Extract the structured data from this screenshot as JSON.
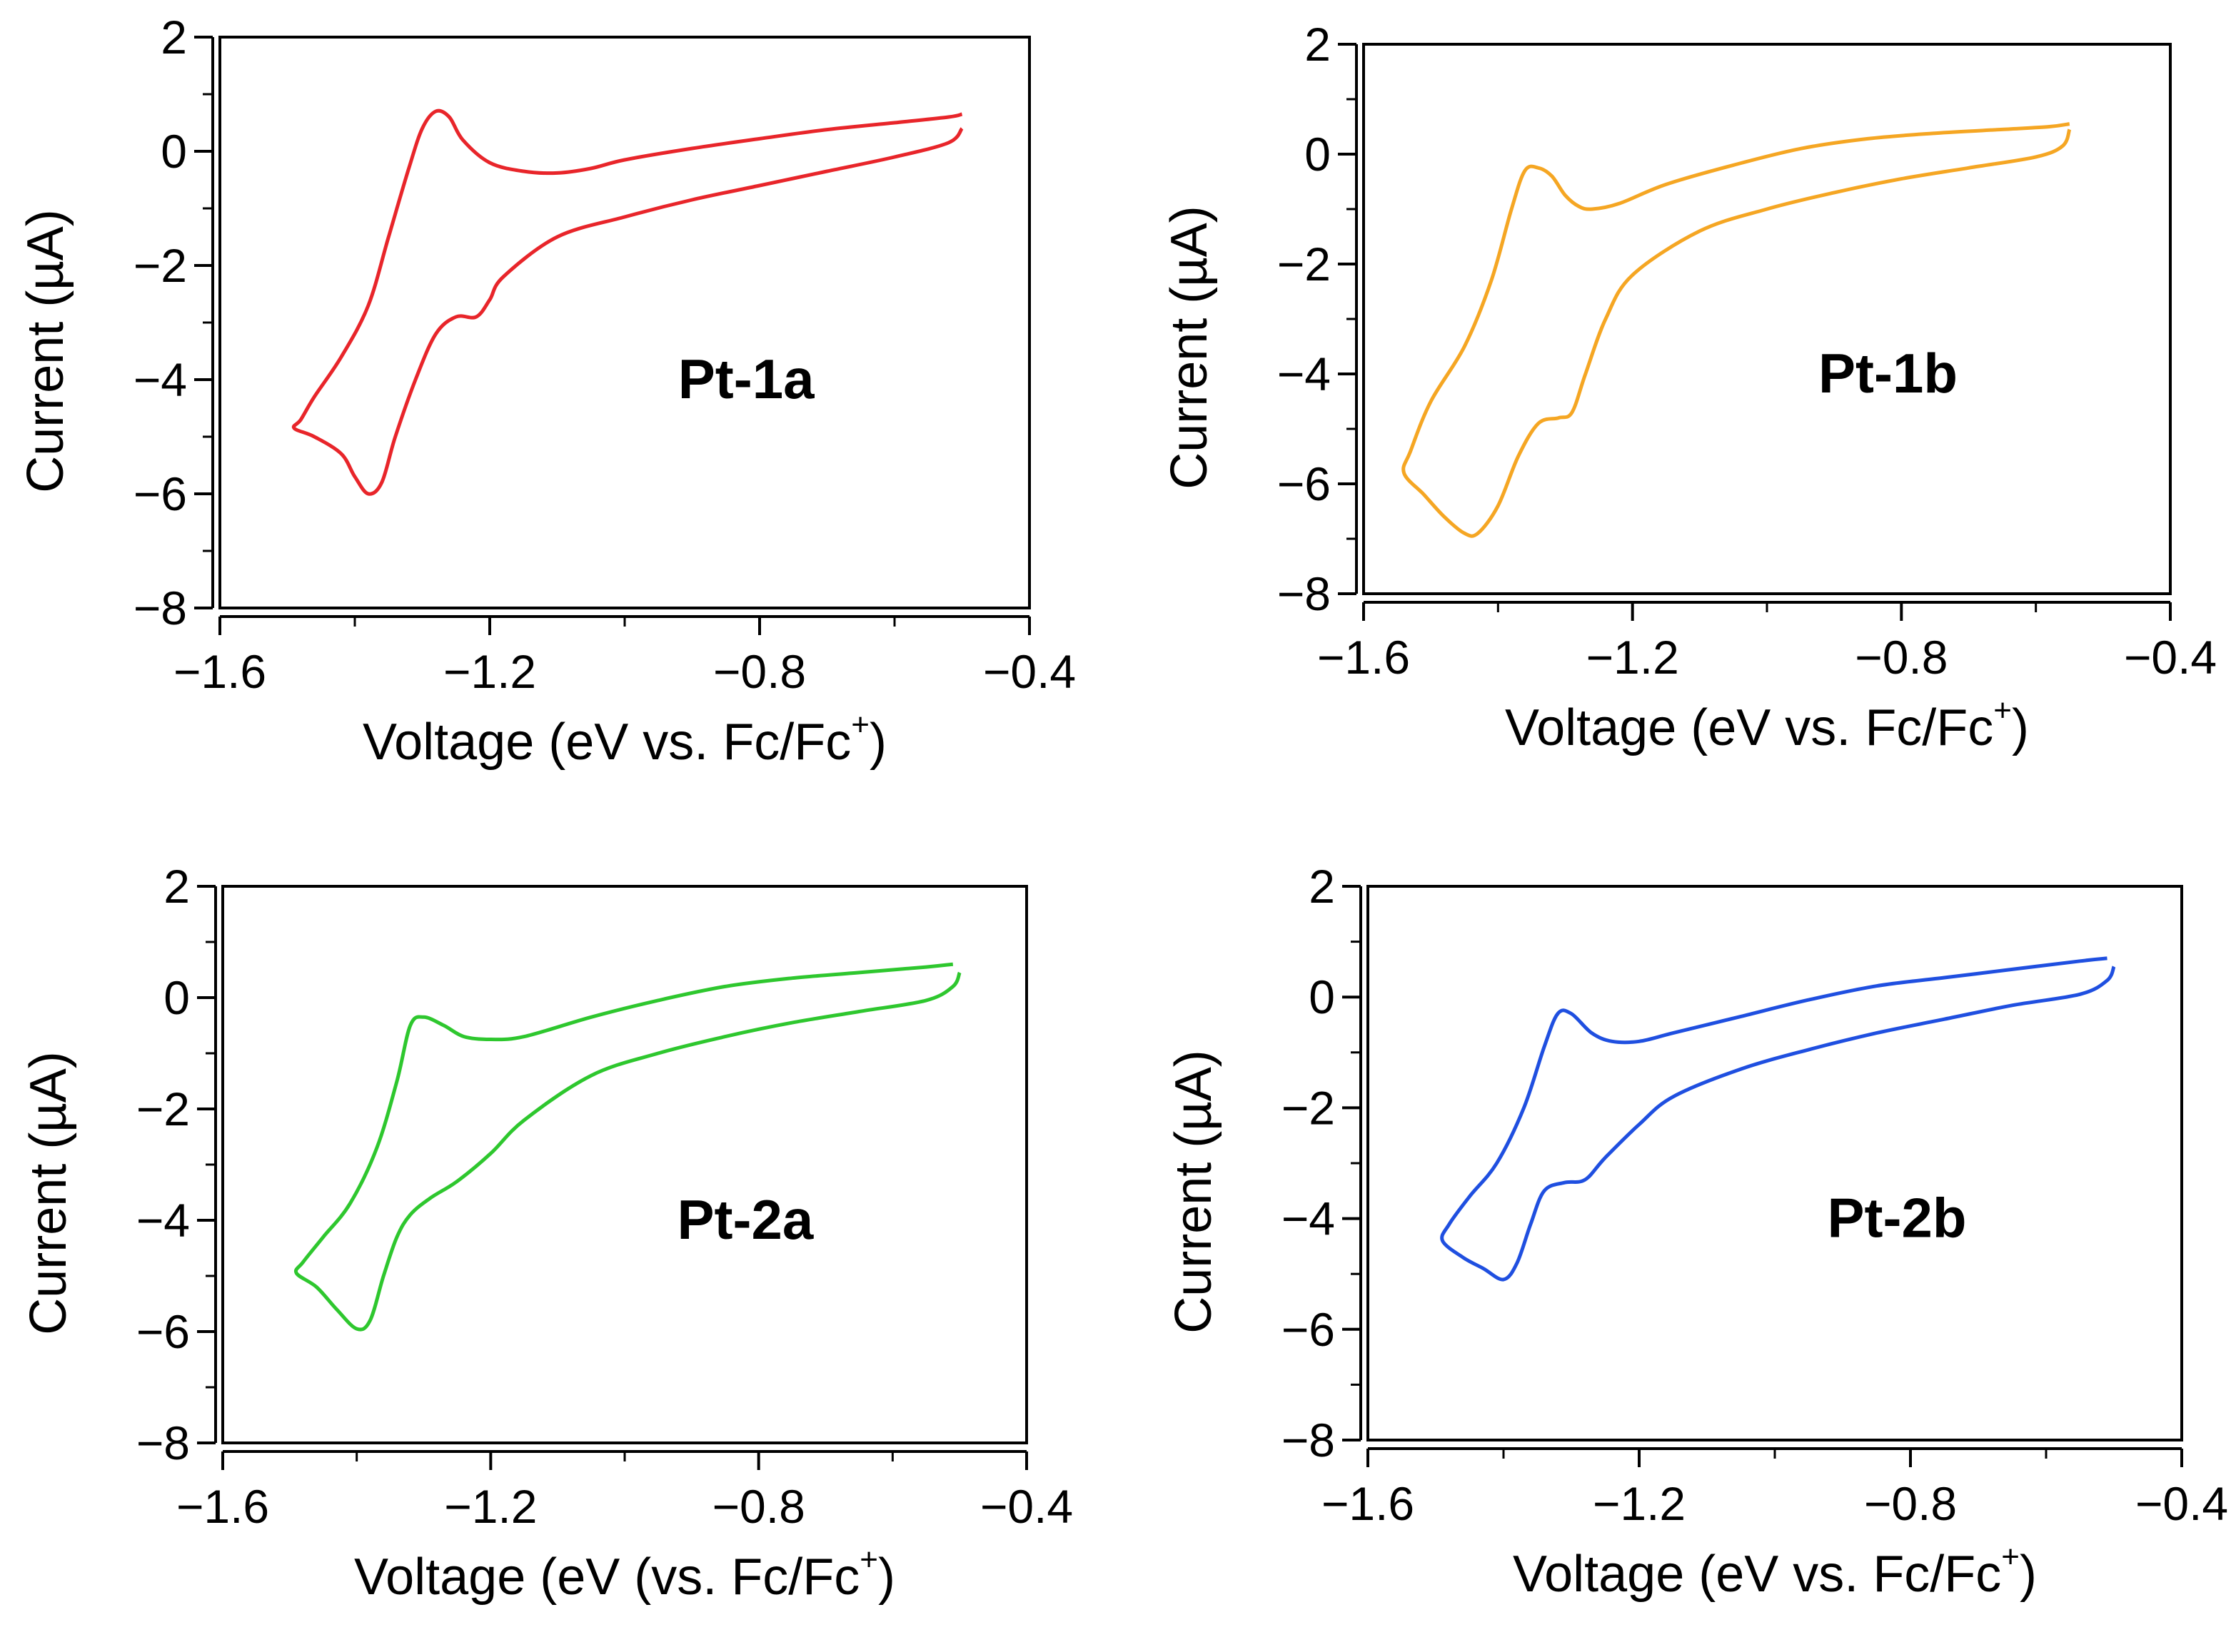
{
  "figure": {
    "panels": [
      {
        "label": "Pt-1a",
        "color": "#e8252a",
        "xlabel_pre": "Voltage (eV vs. Fc/Fc",
        "xlabel_sup": "+",
        "xlabel_post": ")",
        "ylabel": "Current (µA)"
      },
      {
        "label": "Pt-1b",
        "color": "#f5a623",
        "xlabel_pre": "Voltage (eV vs. Fc/Fc",
        "xlabel_sup": "+",
        "xlabel_post": ")",
        "ylabel": "Current (µA)"
      },
      {
        "label": "Pt-2a",
        "color": "#2ec72e",
        "xlabel_pre": "Voltage (eV (vs. Fc/Fc",
        "xlabel_sup": "+",
        "xlabel_post": ")",
        "ylabel": "Current (µA)"
      },
      {
        "label": "Pt-2b",
        "color": "#1f4fe0",
        "xlabel_pre": "Voltage (eV vs. Fc/Fc",
        "xlabel_sup": "+",
        "xlabel_post": ")",
        "ylabel": "Current (µA)"
      }
    ]
  },
  "chart_data": [
    {
      "type": "line",
      "title": "",
      "annotation": "Pt-1a",
      "xlabel": "Voltage (eV vs. Fc/Fc+)",
      "ylabel": "Current (µA)",
      "xlim": [
        -1.6,
        -0.4
      ],
      "ylim": [
        -8,
        2
      ],
      "xticks": [
        -1.6,
        -1.2,
        -0.8,
        -0.4
      ],
      "xtick_labels": [
        "−1.6",
        "−1.2",
        "−0.8",
        "−0.4"
      ],
      "yticks": [
        -8,
        -6,
        -4,
        -2,
        0,
        2
      ],
      "ytick_labels": [
        "−8",
        "−6",
        "−4",
        "−2",
        "0",
        "2"
      ],
      "grid": false,
      "series": [
        {
          "color": "#e8252a",
          "x": [
            -0.5,
            -0.52,
            -0.6,
            -0.7,
            -0.8,
            -0.9,
            -1.0,
            -1.05,
            -1.1,
            -1.15,
            -1.2,
            -1.24,
            -1.26,
            -1.28,
            -1.3,
            -1.32,
            -1.35,
            -1.38,
            -1.42,
            -1.46,
            -1.48,
            -1.49,
            -1.46,
            -1.42,
            -1.4,
            -1.38,
            -1.36,
            -1.34,
            -1.31,
            -1.28,
            -1.25,
            -1.22,
            -1.2,
            -1.18,
            -1.1,
            -1.0,
            -0.9,
            -0.8,
            -0.7,
            -0.6,
            -0.52,
            -0.5
          ],
          "y": [
            0.65,
            0.6,
            0.5,
            0.38,
            0.22,
            0.05,
            -0.15,
            -0.3,
            -0.38,
            -0.35,
            -0.2,
            0.2,
            0.6,
            0.7,
            0.4,
            -0.3,
            -1.5,
            -2.7,
            -3.6,
            -4.3,
            -4.7,
            -4.85,
            -5.0,
            -5.3,
            -5.7,
            -6.0,
            -5.8,
            -5.0,
            -4.0,
            -3.2,
            -2.9,
            -2.9,
            -2.6,
            -2.2,
            -1.5,
            -1.15,
            -0.85,
            -0.6,
            -0.35,
            -0.1,
            0.15,
            0.4
          ]
        }
      ]
    },
    {
      "type": "line",
      "title": "",
      "annotation": "Pt-1b",
      "xlabel": "Voltage (eV vs. Fc/Fc+)",
      "ylabel": "Current (µA)",
      "xlim": [
        -1.6,
        -0.4
      ],
      "ylim": [
        -8,
        2
      ],
      "xticks": [
        -1.6,
        -1.2,
        -0.8,
        -0.4
      ],
      "xtick_labels": [
        "−1.6",
        "−1.2",
        "−0.8",
        "−0.4"
      ],
      "yticks": [
        -8,
        -6,
        -4,
        -2,
        0,
        2
      ],
      "ytick_labels": [
        "−8",
        "−6",
        "−4",
        "−2",
        "0",
        "2"
      ],
      "grid": false,
      "series": [
        {
          "color": "#f5a623",
          "x": [
            -0.55,
            -0.58,
            -0.65,
            -0.75,
            -0.85,
            -0.95,
            -1.05,
            -1.15,
            -1.22,
            -1.26,
            -1.28,
            -1.3,
            -1.32,
            -1.34,
            -1.36,
            -1.38,
            -1.41,
            -1.45,
            -1.5,
            -1.53,
            -1.54,
            -1.51,
            -1.48,
            -1.45,
            -1.43,
            -1.4,
            -1.37,
            -1.34,
            -1.31,
            -1.29,
            -1.27,
            -1.24,
            -1.2,
            -1.1,
            -1.0,
            -0.9,
            -0.8,
            -0.7,
            -0.6,
            -0.56,
            -0.55
          ],
          "y": [
            0.55,
            0.5,
            0.45,
            0.38,
            0.28,
            0.1,
            -0.2,
            -0.55,
            -0.9,
            -1.0,
            -0.95,
            -0.75,
            -0.4,
            -0.25,
            -0.3,
            -1.0,
            -2.3,
            -3.5,
            -4.5,
            -5.4,
            -5.8,
            -6.2,
            -6.6,
            -6.9,
            -6.9,
            -6.4,
            -5.5,
            -4.9,
            -4.8,
            -4.7,
            -4.0,
            -3.0,
            -2.2,
            -1.4,
            -1.0,
            -0.7,
            -0.45,
            -0.25,
            -0.05,
            0.15,
            0.45
          ]
        }
      ]
    },
    {
      "type": "line",
      "title": "",
      "annotation": "Pt-2a",
      "xlabel": "Voltage (eV (vs. Fc/Fc+)",
      "ylabel": "Current (µA)",
      "xlim": [
        -1.6,
        -0.4
      ],
      "ylim": [
        -8,
        2
      ],
      "xticks": [
        -1.6,
        -1.2,
        -0.8,
        -0.4
      ],
      "xtick_labels": [
        "−1.6",
        "−1.2",
        "−0.8",
        "−0.4"
      ],
      "yticks": [
        -8,
        -6,
        -4,
        -2,
        0,
        2
      ],
      "ytick_labels": [
        "−8",
        "−6",
        "−4",
        "−2",
        "0",
        "2"
      ],
      "grid": false,
      "series": [
        {
          "color": "#2ec72e",
          "x": [
            -0.51,
            -0.55,
            -0.65,
            -0.75,
            -0.85,
            -0.95,
            -1.05,
            -1.15,
            -1.2,
            -1.24,
            -1.27,
            -1.3,
            -1.32,
            -1.34,
            -1.37,
            -1.41,
            -1.45,
            -1.48,
            -1.49,
            -1.46,
            -1.43,
            -1.4,
            -1.38,
            -1.36,
            -1.34,
            -1.32,
            -1.29,
            -1.25,
            -1.2,
            -1.15,
            -1.05,
            -0.95,
            -0.85,
            -0.75,
            -0.65,
            -0.55,
            -0.51,
            -0.5
          ],
          "y": [
            0.6,
            0.55,
            0.45,
            0.35,
            0.2,
            -0.05,
            -0.35,
            -0.7,
            -0.75,
            -0.7,
            -0.5,
            -0.35,
            -0.5,
            -1.5,
            -2.7,
            -3.7,
            -4.3,
            -4.75,
            -4.95,
            -5.2,
            -5.6,
            -5.95,
            -5.8,
            -5.0,
            -4.3,
            -3.9,
            -3.6,
            -3.3,
            -2.8,
            -2.2,
            -1.4,
            -1.0,
            -0.7,
            -0.45,
            -0.25,
            -0.05,
            0.2,
            0.45
          ]
        }
      ]
    },
    {
      "type": "line",
      "title": "",
      "annotation": "Pt-2b",
      "xlabel": "Voltage (eV vs. Fc/Fc+)",
      "ylabel": "Current (µA)",
      "xlim": [
        -1.6,
        -0.4
      ],
      "ylim": [
        -8,
        2
      ],
      "xticks": [
        -1.6,
        -1.2,
        -0.8,
        -0.4
      ],
      "xtick_labels": [
        "−1.6",
        "−1.2",
        "−0.8",
        "−0.4"
      ],
      "yticks": [
        -8,
        -6,
        -4,
        -2,
        0,
        2
      ],
      "ytick_labels": [
        "−8",
        "−6",
        "−4",
        "−2",
        "0",
        "2"
      ],
      "grid": false,
      "series": [
        {
          "color": "#1f4fe0",
          "x": [
            -0.51,
            -0.55,
            -0.65,
            -0.75,
            -0.85,
            -0.95,
            -1.05,
            -1.15,
            -1.2,
            -1.24,
            -1.27,
            -1.3,
            -1.32,
            -1.34,
            -1.37,
            -1.41,
            -1.45,
            -1.48,
            -1.49,
            -1.46,
            -1.43,
            -1.4,
            -1.38,
            -1.36,
            -1.34,
            -1.31,
            -1.28,
            -1.25,
            -1.2,
            -1.15,
            -1.05,
            -0.95,
            -0.85,
            -0.75,
            -0.65,
            -0.55,
            -0.51,
            -0.5
          ],
          "y": [
            0.7,
            0.65,
            0.5,
            0.35,
            0.2,
            -0.05,
            -0.35,
            -0.65,
            -0.8,
            -0.8,
            -0.65,
            -0.3,
            -0.3,
            -0.9,
            -2.0,
            -3.0,
            -3.6,
            -4.1,
            -4.4,
            -4.7,
            -4.9,
            -5.1,
            -4.8,
            -4.1,
            -3.5,
            -3.35,
            -3.3,
            -2.9,
            -2.3,
            -1.8,
            -1.3,
            -0.95,
            -0.65,
            -0.4,
            -0.15,
            0.05,
            0.3,
            0.55
          ]
        }
      ]
    }
  ]
}
